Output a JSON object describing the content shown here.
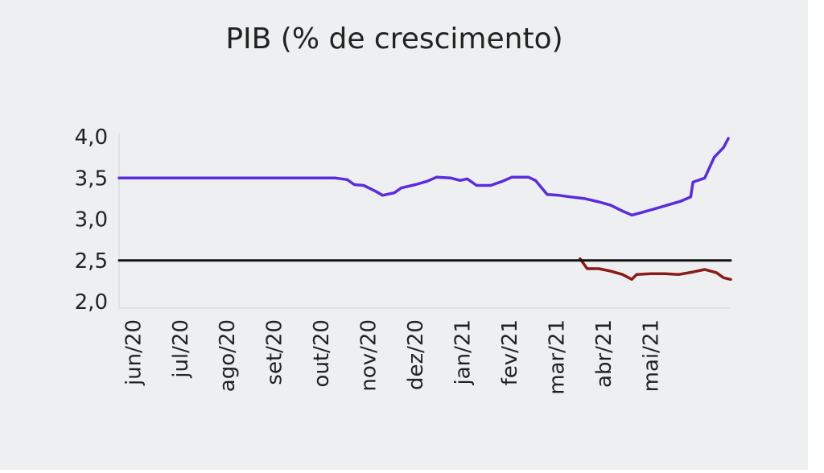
{
  "chart_data": {
    "type": "line",
    "title": "PIB (% de crescimento)",
    "xlabel": "",
    "ylabel": "",
    "x_categories": [
      "jun/20",
      "jul/20",
      "ago/20",
      "set/20",
      "out/20",
      "nov/20",
      "dez/20",
      "jan/21",
      "fev/21",
      "mar/21",
      "abr/21",
      "mai/21"
    ],
    "y_ticks": [
      "4,0",
      "3,5",
      "3,0",
      "2,5",
      "2,0"
    ],
    "ylim": [
      2.0,
      4.0
    ],
    "grid": false,
    "series": [
      {
        "color": "#5b2be0",
        "points": [
          [
            0.0,
            3.5
          ],
          [
            4.6,
            3.5
          ],
          [
            4.85,
            3.48
          ],
          [
            5.0,
            3.42
          ],
          [
            5.2,
            3.41
          ],
          [
            5.45,
            3.34
          ],
          [
            5.6,
            3.29
          ],
          [
            5.85,
            3.32
          ],
          [
            6.0,
            3.38
          ],
          [
            6.3,
            3.42
          ],
          [
            6.55,
            3.46
          ],
          [
            6.75,
            3.51
          ],
          [
            7.05,
            3.5
          ],
          [
            7.25,
            3.47
          ],
          [
            7.4,
            3.49
          ],
          [
            7.6,
            3.41
          ],
          [
            7.9,
            3.41
          ],
          [
            8.15,
            3.46
          ],
          [
            8.35,
            3.51
          ],
          [
            8.7,
            3.51
          ],
          [
            8.85,
            3.47
          ],
          [
            9.1,
            3.3
          ],
          [
            9.35,
            3.29
          ],
          [
            9.6,
            3.27
          ],
          [
            9.9,
            3.25
          ],
          [
            10.2,
            3.21
          ],
          [
            10.45,
            3.17
          ],
          [
            10.7,
            3.1
          ],
          [
            10.9,
            3.05
          ],
          [
            11.1,
            3.08
          ],
          [
            11.35,
            3.12
          ],
          [
            11.65,
            3.17
          ],
          [
            11.95,
            3.22
          ],
          [
            12.15,
            3.27
          ],
          [
            12.2,
            3.45
          ],
          [
            12.45,
            3.5
          ],
          [
            12.65,
            3.75
          ],
          [
            12.85,
            3.87
          ],
          [
            12.95,
            3.98
          ]
        ]
      },
      {
        "color": "#8b1a1a",
        "points": [
          [
            9.8,
            2.52
          ],
          [
            9.95,
            2.4
          ],
          [
            10.2,
            2.4
          ],
          [
            10.45,
            2.37
          ],
          [
            10.7,
            2.33
          ],
          [
            10.9,
            2.27
          ],
          [
            11.0,
            2.33
          ],
          [
            11.3,
            2.34
          ],
          [
            11.6,
            2.34
          ],
          [
            11.9,
            2.33
          ],
          [
            12.2,
            2.36
          ],
          [
            12.45,
            2.39
          ],
          [
            12.7,
            2.35
          ],
          [
            12.85,
            2.29
          ],
          [
            13.0,
            2.27
          ]
        ]
      },
      {
        "color": "#111111",
        "points": [
          [
            0.0,
            2.5
          ],
          [
            13.0,
            2.5
          ]
        ]
      }
    ]
  }
}
